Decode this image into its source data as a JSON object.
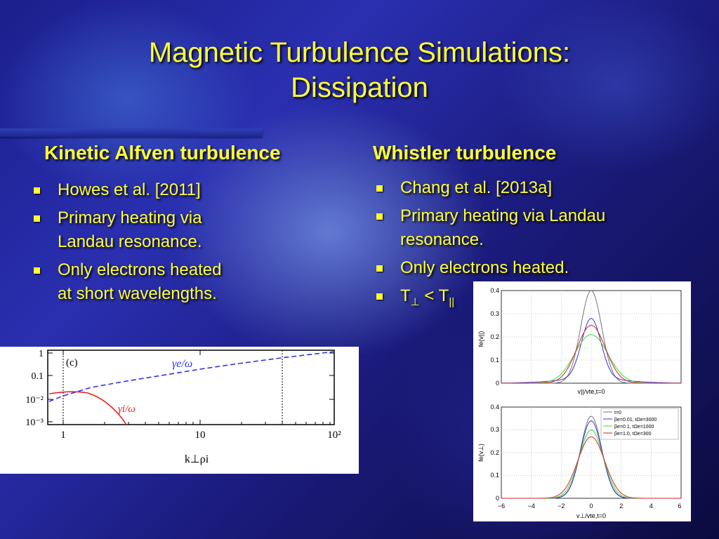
{
  "slide": {
    "title_line1": "Magnetic Turbulence Simulations:",
    "title_line2": "Dissipation"
  },
  "left": {
    "heading": "Kinetic Alfven turbulence",
    "bullets": [
      {
        "line1": "Howes et al. [2011]"
      },
      {
        "line1": "Primary heating via",
        "line2": "Landau resonance."
      },
      {
        "line1": "Only electrons heated",
        "line2": "at short wavelengths."
      }
    ],
    "figure": {
      "panel_label": "(c)",
      "y_ticks": [
        "1",
        "0.1",
        "10⁻²",
        "10⁻³"
      ],
      "x_ticks": [
        "1",
        "10",
        "10²"
      ],
      "xlabel": "k⊥ρi",
      "curve_e_label": "γe/ω",
      "curve_i_label": "γi/ω",
      "colors": {
        "electron": "#3333ee",
        "ion": "#ee2222"
      }
    }
  },
  "right": {
    "heading": "Whistler turbulence",
    "bullets": [
      {
        "line1": "Chang et al. [2013a]"
      },
      {
        "line1": "Primary heating via Landau",
        "line2": "resonance."
      },
      {
        "line1": "Only electrons heated."
      },
      {
        "prefix": "T",
        "sym1": "⊥",
        "mid": " < T",
        "sym2": "||"
      }
    ],
    "figure": {
      "top": {
        "y_ticks": [
          "0.4",
          "0.3",
          "0.2",
          "0.1",
          "0"
        ],
        "ylabel": "fe(v||)",
        "xlabel": "v||/vte,t=0"
      },
      "bottom": {
        "y_ticks": [
          "0.4",
          "0.3",
          "0.2",
          "0.1",
          "0"
        ],
        "x_ticks": [
          "−6",
          "−4",
          "−2",
          "0",
          "2",
          "4",
          "6"
        ],
        "ylabel": "fe(v⊥)",
        "xlabel": "v⊥/vte,t=0",
        "legend": [
          {
            "label": "t=0",
            "color": "#777777"
          },
          {
            "label": "βe=0.01, tΩe=3000",
            "color": "#3333dd"
          },
          {
            "label": "βe=0.1, tΩe=1000",
            "color": "#33dd33"
          },
          {
            "label": "βe=1.0, tΩe=300",
            "color": "#dd2222"
          }
        ]
      }
    }
  }
}
